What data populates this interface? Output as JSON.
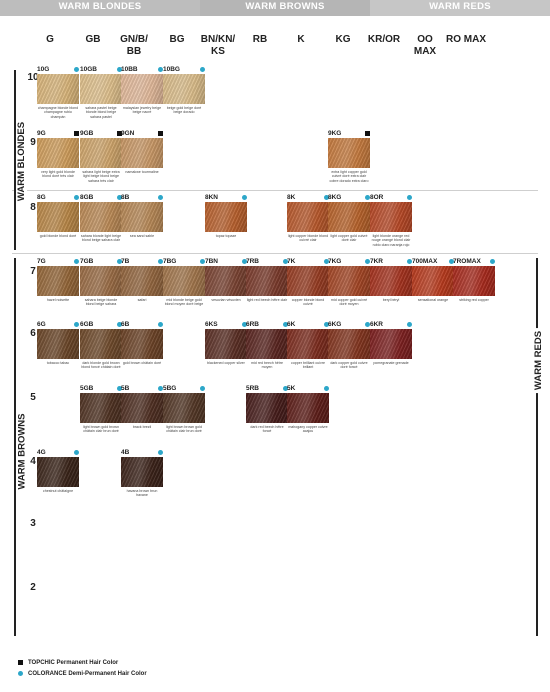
{
  "banners": {
    "blondes": "WARM BLONDES",
    "browns": "WARM BROWNS",
    "reds": "WARM REDS"
  },
  "columns": [
    "G",
    "GB",
    "GN/B/ BB",
    "BG",
    "BN/KN/ KS",
    "RB",
    "K",
    "KG",
    "KR/OR",
    "OO MAX",
    "RO MAX"
  ],
  "levels": [
    "10",
    "9",
    "8",
    "7",
    "6",
    "5",
    "4",
    "3",
    "2"
  ],
  "side_labels": {
    "warm_blondes": "WARM BLONDES",
    "warm_browns": "WARM BROWNS",
    "warm_reds": "WARM REDS"
  },
  "legend": {
    "topchic": "TOPCHIC Permanent Hair Color",
    "colorance": "COLORANCE Demi-Permanent Hair Color"
  },
  "colors": {
    "topchic_mark": "#111111",
    "colorance_mark": "#2da7c9"
  },
  "swatches": [
    {
      "code": "10G",
      "mark": "both",
      "label": "champagne blonde blond champagne rubio champán",
      "color": "#d9b57a"
    },
    {
      "code": "10GB",
      "mark": "both",
      "label": "sahara pastel beige blonde blond beige sahara pastel",
      "color": "#dfc08c"
    },
    {
      "code": "10BB",
      "mark": "both",
      "label": "malaysian jewelry beige beige nacré",
      "color": "#e2b99a"
    },
    {
      "code": "10BG",
      "mark": "both",
      "label": "beige gold beige doré beige dorado",
      "color": "#dbbd8a"
    },
    {
      "code": "9G",
      "mark": "topchic",
      "label": "very light gold blonde blond doré très clair",
      "color": "#cf9d5b"
    },
    {
      "code": "9GB",
      "mark": "topchic",
      "label": "sahara light beige extra light beige blond beige sahara très clair",
      "color": "#cfa56b"
    },
    {
      "code": "9GN",
      "mark": "topchic",
      "label": "namakwe tourmaline",
      "color": "#c99866"
    },
    {
      "code": "9KG",
      "mark": "topchic",
      "label": "extra light copper gold cuivré doré extra clair cobre dorado extra claro",
      "color": "#c57a3e"
    },
    {
      "code": "8G",
      "mark": "both",
      "label": "gold blonde blond doré",
      "color": "#b98747"
    },
    {
      "code": "8GB",
      "mark": "both",
      "label": "sahara blonde light beige blond beige sahara clair",
      "color": "#bb8a56"
    },
    {
      "code": "8B",
      "mark": "both",
      "label": "sea sand sable",
      "color": "#b78856"
    },
    {
      "code": "8KN",
      "mark": "both",
      "label": "topaz topaze",
      "color": "#b8602d"
    },
    {
      "code": "8K",
      "mark": "both",
      "label": "light copper blonde blond cuivré clair",
      "color": "#b8582b"
    },
    {
      "code": "8KG",
      "mark": "both",
      "label": "light copper gold cuivré doré clair",
      "color": "#b8632b"
    },
    {
      "code": "8OR",
      "mark": "both",
      "label": "light blonde orange red rouge orangé blond clair rubio claro naranja rojo",
      "color": "#b74826"
    },
    {
      "code": "7G",
      "mark": "both",
      "label": "hazel noisette",
      "color": "#946638"
    },
    {
      "code": "7GB",
      "mark": "both",
      "label": "sahara beige blonde blond beige sahara",
      "color": "#9a6c45"
    },
    {
      "code": "7B",
      "mark": "both",
      "label": "safari",
      "color": "#93663f"
    },
    {
      "code": "7BG",
      "mark": "both",
      "label": "mid blonde beige gold blond moyen doré beige",
      "color": "#a2764c"
    },
    {
      "code": "7BN",
      "mark": "both",
      "label": "vesuvian vésuvien",
      "color": "#7a4332"
    },
    {
      "code": "7RB",
      "mark": "both",
      "label": "light red beech hêtre clair",
      "color": "#7a3a2b"
    },
    {
      "code": "7K",
      "mark": "both",
      "label": "copper blonde blond cuivré",
      "color": "#973c22"
    },
    {
      "code": "7KG",
      "mark": "both",
      "label": "mid copper gold cuivré doré moyen",
      "color": "#a44625"
    },
    {
      "code": "7KR",
      "mark": "both",
      "label": "beryl béryl",
      "color": "#a5321e"
    },
    {
      "code": "700MAX",
      "mark": "both",
      "label": "sensational orange",
      "color": "#b83a1d"
    },
    {
      "code": "7ROMAX",
      "mark": "both",
      "label": "striking red copper",
      "color": "#a82a1d"
    },
    {
      "code": "6G",
      "mark": "both",
      "label": "tobacco tabac",
      "color": "#6b4628"
    },
    {
      "code": "6GB",
      "mark": "both",
      "label": "dark blonde gold brown blond foncé châtain doré",
      "color": "#6f4a2b"
    },
    {
      "code": "6B",
      "mark": "both",
      "label": "gold brown châtain doré",
      "color": "#6c4327"
    },
    {
      "code": "6KS",
      "mark": "both",
      "label": "blackened copper silver",
      "color": "#5a2e24"
    },
    {
      "code": "6RB",
      "mark": "both",
      "label": "mid red beech hêtre moyen",
      "color": "#5a2520"
    },
    {
      "code": "6K",
      "mark": "both",
      "label": "copper brilliant cuivre brillant",
      "color": "#7d2c1e"
    },
    {
      "code": "6KG",
      "mark": "both",
      "label": "dark copper gold cuivre doré foncé",
      "color": "#83351f"
    },
    {
      "code": "6KR",
      "mark": "both",
      "label": "pomegranate grenade",
      "color": "#7d2020"
    },
    {
      "code": "5GB",
      "mark": "both",
      "label": "light brown gold brown châtain clair brun doré",
      "color": "#4f3222"
    },
    {
      "code": "5B",
      "mark": "both",
      "label": "brack brezil",
      "color": "#4f2f22"
    },
    {
      "code": "5BG",
      "mark": "both",
      "label": "light brown brown gold châtain clair brun doré",
      "color": "#533726"
    },
    {
      "code": "5RB",
      "mark": "both",
      "label": "dark red beech hêtre foncé",
      "color": "#471d1b"
    },
    {
      "code": "5K",
      "mark": "both",
      "label": "mahogany copper cuivre acajou",
      "color": "#5e1e19"
    },
    {
      "code": "4G",
      "mark": "both",
      "label": "chestnut châtaigne",
      "color": "#3a2419"
    },
    {
      "code": "4B",
      "mark": "both",
      "label": "havana brown brun havane",
      "color": "#3b2219"
    }
  ]
}
